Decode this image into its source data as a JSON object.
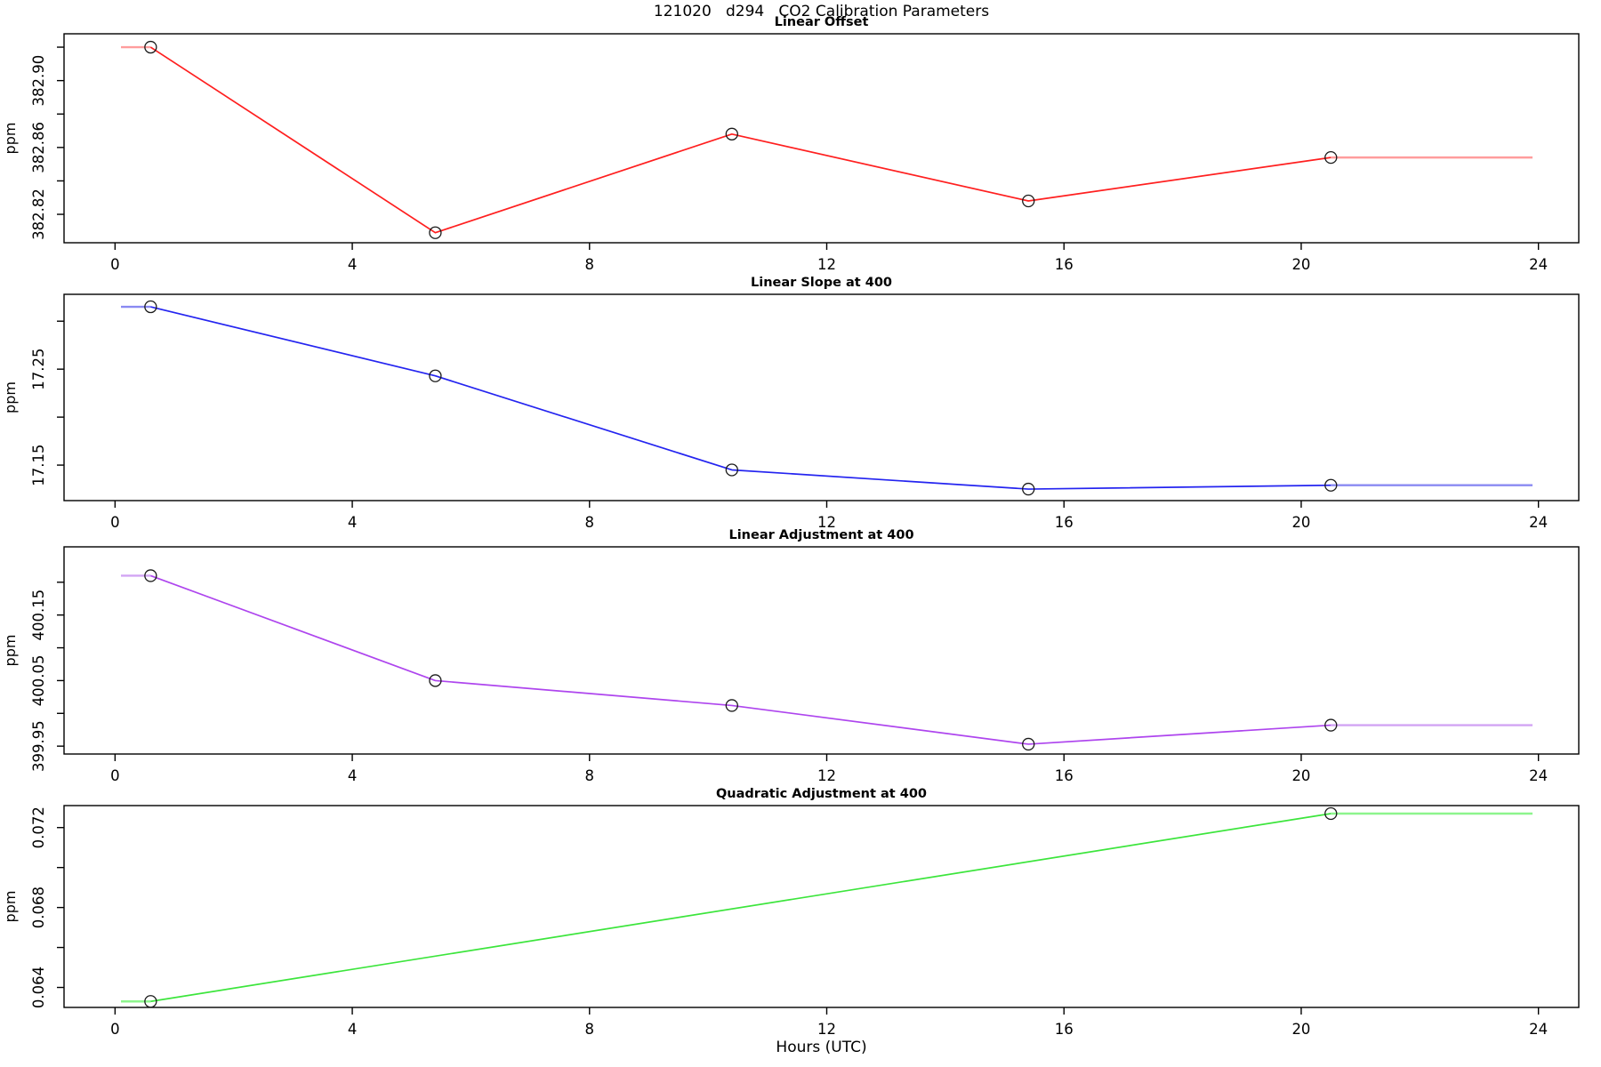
{
  "page_title": "121020   d294   CO2 Calibration Parameters",
  "xlabel": "Hours (UTC)",
  "x_axis": {
    "ticks": [
      0,
      4,
      8,
      12,
      16,
      20,
      24
    ],
    "range": [
      -0.86,
      24.68
    ]
  },
  "chart_data": [
    {
      "type": "line",
      "title": "Linear Offset",
      "ylabel": "ppm",
      "color": "#FF1F1F",
      "light_color": "#FF9D9D",
      "x": [
        0.6,
        5.4,
        10.4,
        15.4,
        20.5
      ],
      "y": [
        382.92,
        382.809,
        382.868,
        382.828,
        382.854
      ],
      "extrapolation": {
        "pre_x": 0.1,
        "post_x": 23.9
      },
      "ylim": [
        382.803,
        382.928
      ],
      "yticks": [
        382.82,
        382.84,
        382.86,
        382.88,
        382.9,
        382.92
      ],
      "ytick_labels": [
        "382.82",
        "",
        "382.86",
        "",
        "382.90",
        ""
      ]
    },
    {
      "type": "line",
      "title": "Linear Slope at 400",
      "ylabel": "ppm",
      "color": "#2424F0",
      "light_color": "#8A8AF2",
      "x": [
        0.6,
        5.4,
        10.4,
        15.4,
        20.5
      ],
      "y": [
        17.315,
        17.243,
        17.145,
        17.125,
        17.129
      ],
      "extrapolation": {
        "pre_x": 0.1,
        "post_x": 23.9
      },
      "ylim": [
        17.113,
        17.328
      ],
      "yticks": [
        17.15,
        17.2,
        17.25,
        17.3
      ],
      "ytick_labels": [
        "17.15",
        "",
        "17.25",
        ""
      ]
    },
    {
      "type": "line",
      "title": "Linear Adjustment at 400",
      "ylabel": "ppm",
      "color": "#AE45EE",
      "light_color": "#D2A4F4",
      "x": [
        0.6,
        5.4,
        10.4,
        15.4,
        20.5
      ],
      "y": [
        400.21,
        400.05,
        400.012,
        399.953,
        399.982
      ],
      "extrapolation": {
        "pre_x": 0.1,
        "post_x": 23.9
      },
      "ylim": [
        399.938,
        400.254
      ],
      "yticks": [
        399.95,
        400.0,
        400.05,
        400.1,
        400.15,
        400.2
      ],
      "ytick_labels": [
        "399.95",
        "",
        "400.05",
        "",
        "400.15",
        ""
      ]
    },
    {
      "type": "line",
      "title": "Quadratic Adjustment at 400",
      "ylabel": "ppm",
      "color": "#3CE53C",
      "light_color": "#8DF58D",
      "x": [
        0.6,
        20.5
      ],
      "y": [
        0.0633,
        0.0727
      ],
      "extrapolation": {
        "pre_x": 0.1,
        "post_x": 23.9
      },
      "ylim": [
        0.063,
        0.0731
      ],
      "yticks": [
        0.064,
        0.066,
        0.068,
        0.07,
        0.072
      ],
      "ytick_labels": [
        "0.064",
        "",
        "0.068",
        "",
        "0.072"
      ]
    }
  ]
}
